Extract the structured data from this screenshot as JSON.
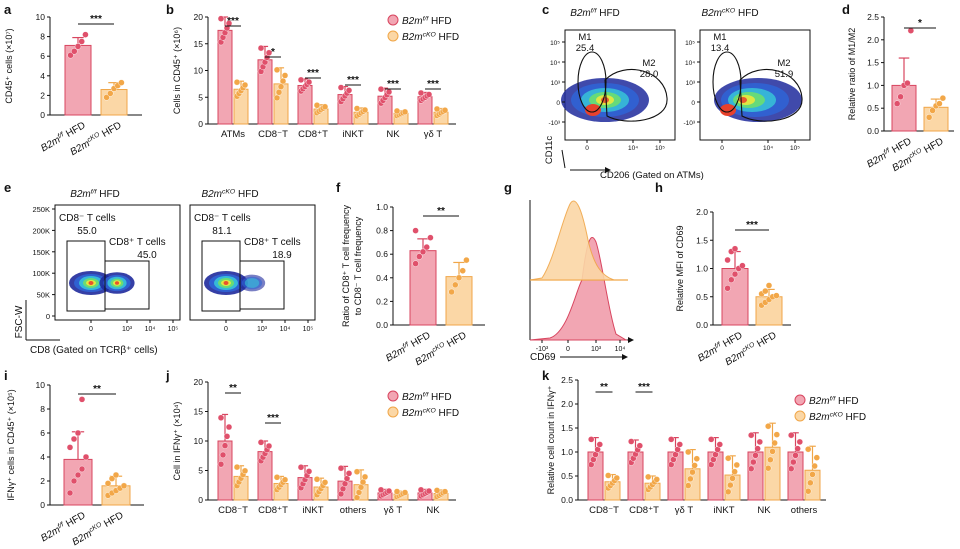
{
  "colors": {
    "ctrl_fill": "#f2a6b3",
    "ctrl_stroke": "#d8455f",
    "ctrl_dot": "#e0506b",
    "cko_fill": "#fbd7a6",
    "cko_stroke": "#f0a648",
    "cko_dot": "#f2a748"
  },
  "groups": [
    "B2m^{f/f} HFD",
    "B2m^{cKO} HFD"
  ],
  "panels": {
    "a": {
      "letter": "a",
      "ylabel": "CD45⁺ cells (×10⁷)",
      "yticks": [
        "0",
        "2",
        "4",
        "6",
        "8",
        "10"
      ],
      "sig": "***"
    },
    "b": {
      "letter": "b",
      "ylabel": "Cells in CD45⁺ (×10⁶)",
      "yticks": [
        "0",
        "5",
        "10",
        "15",
        "20"
      ],
      "sigs": [
        "***",
        "*",
        "***",
        "***",
        "***",
        "***"
      ]
    },
    "c": {
      "letter": "c",
      "titles": [
        "B2m^{f/f} HFD",
        "B2m^{cKO} HFD"
      ],
      "ylabel": "CD11c",
      "xlabel": "CD206 (Gated on ATMs)",
      "yticks": [
        "10⁵",
        "10⁴",
        "10³",
        "0",
        "-10³"
      ],
      "xticks": [
        "0",
        "10⁴",
        "10⁵"
      ],
      "gates": [
        {
          "m1": "M1",
          "v1": "25.4",
          "m2": "M2",
          "v2": "28.0"
        },
        {
          "m1": "M1",
          "v1": "13.4",
          "m2": "M2",
          "v2": "51.9"
        }
      ]
    },
    "d": {
      "letter": "d",
      "ylabel": "Relative ratio of M1/M2",
      "yticks": [
        "0.0",
        "0.5",
        "1.0",
        "1.5",
        "2.0",
        "2.5"
      ],
      "sig": "*"
    },
    "e": {
      "letter": "e",
      "titles": [
        "B2m^{f/f} HFD",
        "B2m^{cKO} HFD"
      ],
      "ylabel": "FSC-W",
      "xlabel": "CD8 (Gated on TCRβ⁺ cells)",
      "yticks": [
        "250K",
        "200K",
        "150K",
        "100K",
        "50K",
        "0"
      ],
      "xticks": [
        "0",
        "10³",
        "10⁴",
        "10⁵"
      ],
      "gates": [
        {
          "g1": "CD8⁻ T cells",
          "v1": "55.0",
          "g2": "CD8⁺ T cells",
          "v2": "45.0"
        },
        {
          "g1": "CD8⁻ T cells",
          "v1": "81.1",
          "g2": "CD8⁺ T cells",
          "v2": "18.9"
        }
      ]
    },
    "f": {
      "letter": "f",
      "ylabel": "Ratio of CD8⁺ T cell frequency to CD8⁻ T cell frequency",
      "yticks": [
        "0.0",
        "0.2",
        "0.4",
        "0.6",
        "0.8",
        "1.0"
      ],
      "sig": "**"
    },
    "g": {
      "letter": "g",
      "xlabel": "CD69",
      "xticks": [
        "-10³",
        "0",
        "10³",
        "10⁴"
      ]
    },
    "h": {
      "letter": "h",
      "ylabel": "Relative MFI of CD69",
      "yticks": [
        "0.0",
        "0.5",
        "1.0",
        "1.5",
        "2.0"
      ],
      "sig": "***"
    },
    "i": {
      "letter": "i",
      "ylabel": "IFNγ⁺ cells in CD45⁺ (×10⁵)",
      "yticks": [
        "0",
        "2",
        "4",
        "6",
        "8",
        "10"
      ],
      "sig": "**"
    },
    "j": {
      "letter": "j",
      "ylabel": "Cell in IFNγ⁺ (×10⁴)",
      "yticks": [
        "0",
        "5",
        "10",
        "15",
        "20"
      ],
      "sigs": [
        "**",
        "***"
      ]
    },
    "k": {
      "letter": "k",
      "ylabel": "Relative cell count in IFNγ⁺",
      "yticks": [
        "0.0",
        "0.5",
        "1.0",
        "1.5",
        "2.0",
        "2.5"
      ],
      "sigs": [
        "**",
        "***"
      ]
    }
  },
  "chart_data": [
    {
      "panel": "a",
      "type": "bar",
      "categories": [
        "B2m^{f/f} HFD",
        "B2m^{cKO} HFD"
      ],
      "values": [
        7.1,
        2.6
      ],
      "errors": [
        0.8,
        0.7
      ],
      "points": [
        [
          6.1,
          6.5,
          7.0,
          7.5,
          8.2
        ],
        [
          1.8,
          2.2,
          2.7,
          3.0,
          3.3
        ]
      ],
      "ylim": [
        0,
        10
      ]
    },
    {
      "panel": "b",
      "type": "bar",
      "categories": [
        "ATMs",
        "CD8⁻T",
        "CD8⁺T",
        "iNKT",
        "NK",
        "γδ T"
      ],
      "series": [
        {
          "name": "B2m^{f/f} HFD",
          "values": [
            17.5,
            12,
            7.2,
            5.5,
            5.2,
            5.1
          ],
          "errors": [
            2.5,
            2.5,
            1.2,
            1.5,
            1.5,
            0.8
          ]
        },
        {
          "name": "B2m^{cKO} HFD",
          "values": [
            6.5,
            7.5,
            2.8,
            2.2,
            2.0,
            2.2
          ],
          "errors": [
            1.5,
            3,
            0.8,
            0.8,
            0.5,
            0.7
          ]
        }
      ],
      "ylim": [
        0,
        20
      ]
    },
    {
      "panel": "d",
      "type": "bar",
      "categories": [
        "B2m^{f/f} HFD",
        "B2m^{cKO} HFD"
      ],
      "values": [
        1.0,
        0.52
      ],
      "errors": [
        0.6,
        0.18
      ],
      "points": [
        [
          0.6,
          0.75,
          1.0,
          1.05,
          2.2
        ],
        [
          0.3,
          0.45,
          0.55,
          0.6,
          0.72
        ]
      ],
      "ylim": [
        0,
        2.5
      ]
    },
    {
      "panel": "f",
      "type": "bar",
      "categories": [
        "B2m^{f/f} HFD",
        "B2m^{cKO} HFD"
      ],
      "values": [
        0.63,
        0.41
      ],
      "errors": [
        0.1,
        0.12
      ],
      "points": [
        [
          0.52,
          0.58,
          0.62,
          0.66,
          0.74,
          0.8
        ],
        [
          0.28,
          0.34,
          0.4,
          0.46,
          0.55
        ]
      ],
      "ylim": [
        0,
        1.0
      ]
    },
    {
      "panel": "g",
      "type": "area",
      "series": [
        {
          "name": "B2m^{f/f} HFD"
        },
        {
          "name": "B2m^{cKO} HFD"
        }
      ]
    },
    {
      "panel": "h",
      "type": "bar",
      "categories": [
        "B2m^{f/f} HFD",
        "B2m^{cKO} HFD"
      ],
      "values": [
        1.0,
        0.5
      ],
      "errors": [
        0.3,
        0.13
      ],
      "points": [
        [
          0.65,
          0.8,
          0.9,
          1.0,
          1.05,
          1.15,
          1.3,
          1.35
        ],
        [
          0.35,
          0.4,
          0.45,
          0.5,
          0.52,
          0.55,
          0.6,
          0.7
        ]
      ],
      "ylim": [
        0,
        2.0
      ]
    },
    {
      "panel": "i",
      "type": "bar",
      "categories": [
        "B2m^{f/f} HFD",
        "B2m^{cKO} HFD"
      ],
      "values": [
        3.8,
        1.6
      ],
      "errors": [
        2.3,
        0.8
      ],
      "points": [
        [
          1.0,
          2.0,
          2.5,
          3.0,
          4.0,
          4.8,
          5.5,
          6.0,
          8.8
        ],
        [
          0.8,
          1.0,
          1.2,
          1.4,
          1.6,
          1.8,
          2.2,
          2.5
        ]
      ],
      "ylim": [
        0,
        10
      ]
    },
    {
      "panel": "j",
      "type": "bar",
      "categories": [
        "CD8⁻T",
        "CD8⁺T",
        "iNKT",
        "others",
        "γδ T",
        "NK"
      ],
      "series": [
        {
          "name": "B2m^{f/f} HFD",
          "values": [
            10,
            8.2,
            3.8,
            3.2,
            1.2,
            1.2
          ],
          "errors": [
            4.5,
            1.8,
            2,
            2.5,
            0.6,
            0.6
          ]
        },
        {
          "name": "B2m^{cKO} HFD",
          "values": [
            4,
            2.8,
            2.2,
            2.6,
            1.0,
            1.1
          ],
          "errors": [
            1.8,
            1.2,
            1.5,
            2.5,
            0.5,
            0.6
          ]
        }
      ],
      "ylim": [
        0,
        20
      ]
    },
    {
      "panel": "k",
      "type": "bar",
      "categories": [
        "CD8⁻T",
        "CD8⁺T",
        "γδ T",
        "iNKT",
        "NK",
        "others"
      ],
      "series": [
        {
          "name": "B2m^{f/f} HFD",
          "values": [
            1.0,
            1.0,
            1.0,
            1.0,
            1.0,
            1.0
          ],
          "errors": [
            0.3,
            0.25,
            0.3,
            0.3,
            0.4,
            0.4
          ]
        },
        {
          "name": "B2m^{cKO} HFD",
          "values": [
            0.38,
            0.35,
            0.65,
            0.52,
            1.1,
            0.62
          ],
          "errors": [
            0.15,
            0.15,
            0.4,
            0.4,
            0.5,
            0.5
          ]
        }
      ],
      "ylim": [
        0,
        2.5
      ]
    }
  ]
}
